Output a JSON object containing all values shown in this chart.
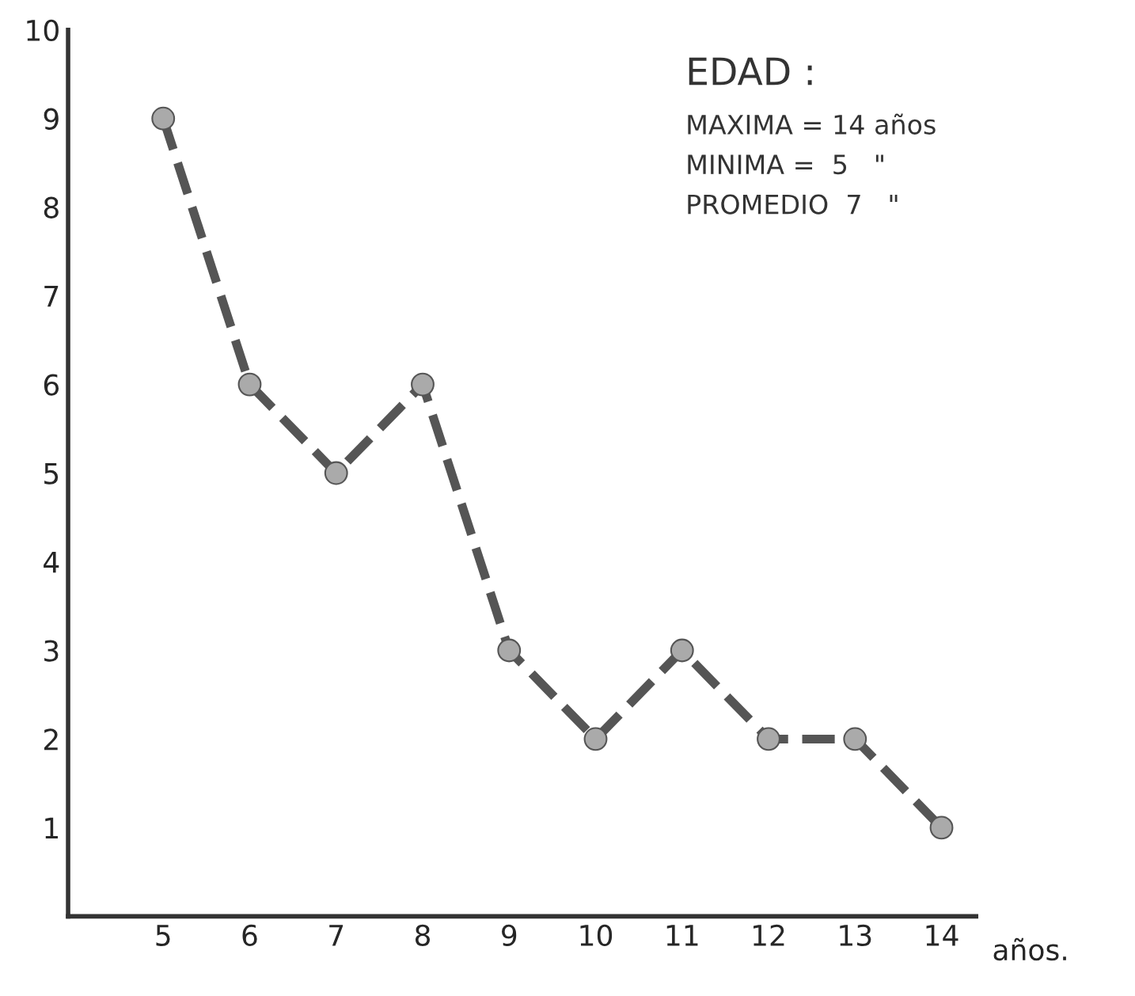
{
  "chart_data": {
    "type": "line",
    "xlabel": "años.",
    "x": [
      5,
      6,
      7,
      8,
      9,
      10,
      11,
      12,
      13,
      14
    ],
    "series": [
      {
        "color": "#555555",
        "values": [
          9,
          6,
          5,
          6,
          3,
          2,
          3,
          2,
          2,
          1
        ]
      }
    ],
    "xlim": [
      3.9,
      14.4
    ],
    "xticks": [
      5,
      6,
      7,
      8,
      9,
      10,
      11,
      12,
      13,
      14
    ],
    "ylim": [
      0,
      10
    ],
    "yticks": [
      1,
      2,
      3,
      4,
      5,
      6,
      7,
      8,
      9,
      10
    ],
    "annotations": [
      "EDAD :",
      "MAXIMA = 14 años",
      "MINIMA =  5   \"",
      "PROMEDIO  7   \""
    ],
    "grid": false,
    "legend": false,
    "marker": "circle",
    "line_style": "dashed"
  }
}
